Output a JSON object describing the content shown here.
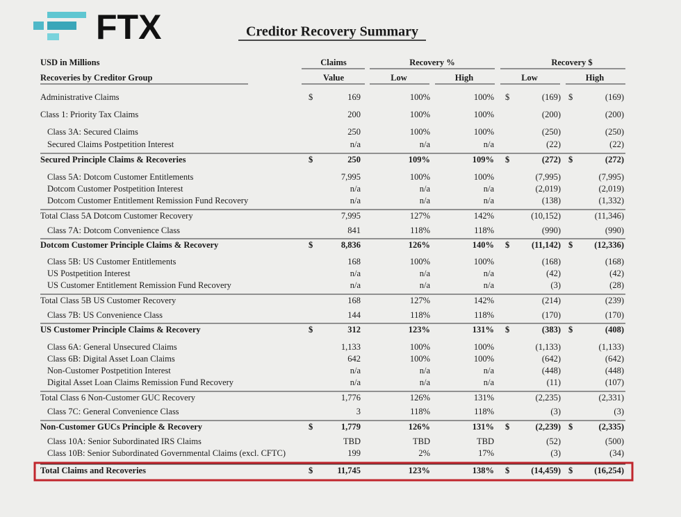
{
  "logo": "FTX",
  "title": "Creditor Recovery Summary",
  "currency_symbol": "$",
  "table": {
    "units": "USD in Millions",
    "group_headers": [
      "Claims",
      "Recovery %",
      "Recovery $"
    ],
    "column_headers": [
      "Recoveries by Creditor Group",
      "Value",
      "Low",
      "High",
      "Low",
      "High"
    ],
    "rows": [
      [
        "Administrative Claims",
        "169",
        "100%",
        "100%",
        "(169)",
        "(169)"
      ],
      [
        "Class 1: Priority Tax Claims",
        "200",
        "100%",
        "100%",
        "(200)",
        "(200)"
      ],
      [
        "Class 3A: Secured Claims",
        "250",
        "100%",
        "100%",
        "(250)",
        "(250)"
      ],
      [
        "Secured Claims Postpetition Interest",
        "n/a",
        "n/a",
        "n/a",
        "(22)",
        "(22)"
      ],
      [
        "Secured Principle Claims & Recoveries",
        "250",
        "109%",
        "109%",
        "(272)",
        "(272)"
      ],
      [
        "Class 5A: Dotcom Customer Entitlements",
        "7,995",
        "100%",
        "100%",
        "(7,995)",
        "(7,995)"
      ],
      [
        "Dotcom Customer Postpetition Interest",
        "n/a",
        "n/a",
        "n/a",
        "(2,019)",
        "(2,019)"
      ],
      [
        "Dotcom Customer Entitlement Remission Fund Recovery",
        "n/a",
        "n/a",
        "n/a",
        "(138)",
        "(1,332)"
      ],
      [
        "Total Class 5A Dotcom Customer Recovery",
        "7,995",
        "127%",
        "142%",
        "(10,152)",
        "(11,346)"
      ],
      [
        "Class 7A: Dotcom Convenience Class",
        "841",
        "118%",
        "118%",
        "(990)",
        "(990)"
      ],
      [
        "Dotcom Customer Principle Claims & Recovery",
        "8,836",
        "126%",
        "140%",
        "(11,142)",
        "(12,336)"
      ],
      [
        "Class 5B: US Customer Entitlements",
        "168",
        "100%",
        "100%",
        "(168)",
        "(168)"
      ],
      [
        "US Postpetition Interest",
        "n/a",
        "n/a",
        "n/a",
        "(42)",
        "(42)"
      ],
      [
        "US Customer Entitlement Remission Fund Recovery",
        "n/a",
        "n/a",
        "n/a",
        "(3)",
        "(28)"
      ],
      [
        "Total Class 5B US Customer Recovery",
        "168",
        "127%",
        "142%",
        "(214)",
        "(239)"
      ],
      [
        "Class 7B: US Convenience Class",
        "144",
        "118%",
        "118%",
        "(170)",
        "(170)"
      ],
      [
        "US Customer Principle Claims & Recovery",
        "312",
        "123%",
        "131%",
        "(383)",
        "(408)"
      ],
      [
        "Class 6A: General Unsecured Claims",
        "1,133",
        "100%",
        "100%",
        "(1,133)",
        "(1,133)"
      ],
      [
        "Class 6B: Digital Asset Loan Claims",
        "642",
        "100%",
        "100%",
        "(642)",
        "(642)"
      ],
      [
        "Non-Customer Postpetition Interest",
        "n/a",
        "n/a",
        "n/a",
        "(448)",
        "(448)"
      ],
      [
        "Digital Asset Loan Claims Remission Fund Recovery",
        "n/a",
        "n/a",
        "n/a",
        "(11)",
        "(107)"
      ],
      [
        "Total Class 6 Non-Customer GUC Recovery",
        "1,776",
        "126%",
        "131%",
        "(2,235)",
        "(2,331)"
      ],
      [
        "Class 7C: General Convenience Class",
        "3",
        "118%",
        "118%",
        "(3)",
        "(3)"
      ],
      [
        "Non-Customer GUCs Principle & Recovery",
        "1,779",
        "126%",
        "131%",
        "(2,239)",
        "(2,335)"
      ],
      [
        "Class 10A: Senior Subordinated IRS Claims",
        "TBD",
        "TBD",
        "TBD",
        "(52)",
        "(500)"
      ],
      [
        "Class 10B: Senior Subordinated Governmental Claims (excl. CFTC)",
        "199",
        "2%",
        "17%",
        "(3)",
        "(34)"
      ],
      [
        "Total Claims and Recoveries",
        "11,745",
        "123%",
        "138%",
        "(14,459)",
        "(16,254)"
      ]
    ]
  }
}
